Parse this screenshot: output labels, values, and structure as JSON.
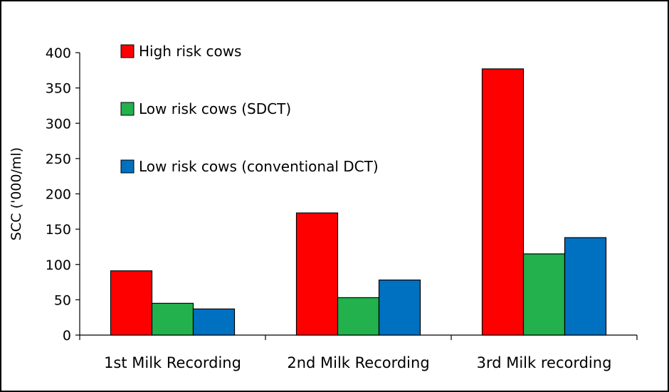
{
  "chart_data": {
    "type": "bar",
    "title": "",
    "xlabel": "",
    "ylabel": "SCC ('000/ml)",
    "ylim": [
      0,
      400
    ],
    "y_ticks": [
      0,
      50,
      100,
      150,
      200,
      250,
      300,
      350,
      400
    ],
    "grid": false,
    "legend_position": "top-left",
    "categories": [
      "1st Milk Recording",
      "2nd Milk Recording",
      "3rd Milk recording"
    ],
    "series": [
      {
        "name": "High risk cows",
        "color": "#ff0000",
        "values": [
          91,
          173,
          377
        ]
      },
      {
        "name": "Low risk cows (SDCT)",
        "color": "#22b14c",
        "values": [
          45,
          53,
          115
        ]
      },
      {
        "name": "Low risk cows (conventional DCT)",
        "color": "#0070c0",
        "values": [
          37,
          78,
          138
        ]
      }
    ]
  }
}
